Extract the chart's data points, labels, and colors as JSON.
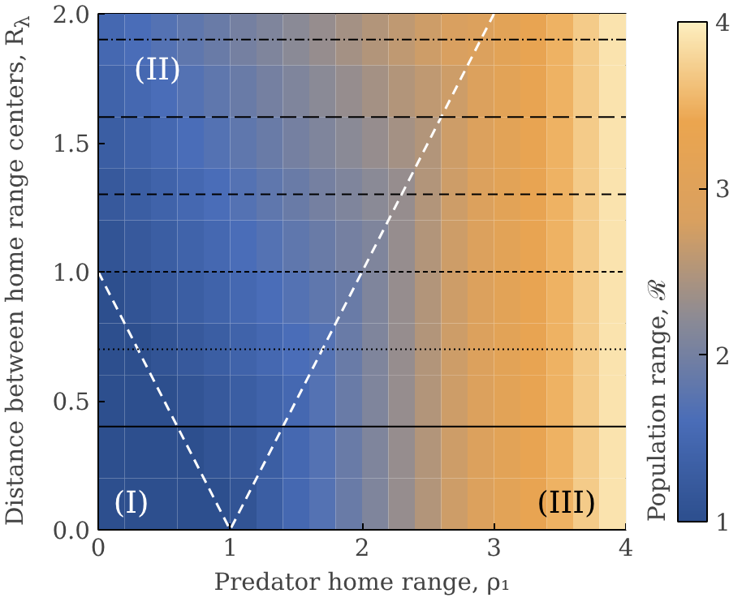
{
  "chart_data": {
    "type": "heatmap",
    "xlabel": "Predator home range, ρ₁",
    "ylabel": "Distance between home range centers, R$_{λ}$",
    "clabel": "Population range, ℛ",
    "x": [
      0.1,
      0.3,
      0.5,
      0.7,
      0.9,
      1.1,
      1.3,
      1.5,
      1.7,
      1.9,
      2.1,
      2.3,
      2.5,
      2.7,
      2.9,
      3.1,
      3.3,
      3.5,
      3.7,
      3.9
    ],
    "y": [
      1.9,
      1.7,
      1.5,
      1.3,
      1.1,
      0.9,
      0.7,
      0.5,
      0.3,
      0.1
    ],
    "cells": [
      [
        1.5,
        1.6,
        1.7,
        1.8,
        1.9,
        2.0,
        2.1,
        2.2,
        2.3,
        2.4,
        2.5,
        2.6,
        2.7,
        2.8,
        2.9,
        3.1,
        3.3,
        3.5,
        3.7,
        3.9
      ],
      [
        1.4,
        1.5,
        1.6,
        1.7,
        1.8,
        1.9,
        2.0,
        2.1,
        2.2,
        2.3,
        2.4,
        2.5,
        2.6,
        2.7,
        2.9,
        3.1,
        3.3,
        3.5,
        3.7,
        3.9
      ],
      [
        1.3,
        1.4,
        1.5,
        1.6,
        1.7,
        1.8,
        1.9,
        2.0,
        2.1,
        2.2,
        2.3,
        2.4,
        2.5,
        2.7,
        2.9,
        3.1,
        3.3,
        3.5,
        3.7,
        3.9
      ],
      [
        1.2,
        1.3,
        1.4,
        1.5,
        1.6,
        1.7,
        1.8,
        1.9,
        2.0,
        2.1,
        2.2,
        2.3,
        2.5,
        2.7,
        2.9,
        3.1,
        3.3,
        3.5,
        3.7,
        3.9
      ],
      [
        1.1,
        1.2,
        1.3,
        1.4,
        1.5,
        1.6,
        1.7,
        1.8,
        1.9,
        2.0,
        2.1,
        2.3,
        2.5,
        2.7,
        2.9,
        3.1,
        3.3,
        3.5,
        3.7,
        3.9
      ],
      [
        1.0,
        1.1,
        1.2,
        1.3,
        1.4,
        1.5,
        1.6,
        1.7,
        1.8,
        1.9,
        2.1,
        2.3,
        2.5,
        2.7,
        2.9,
        3.1,
        3.3,
        3.5,
        3.7,
        3.9
      ],
      [
        1.0,
        1.0,
        1.1,
        1.2,
        1.3,
        1.4,
        1.5,
        1.6,
        1.7,
        1.9,
        2.1,
        2.3,
        2.5,
        2.7,
        2.9,
        3.1,
        3.3,
        3.5,
        3.7,
        3.9
      ],
      [
        1.0,
        1.0,
        1.0,
        1.1,
        1.2,
        1.3,
        1.4,
        1.5,
        1.7,
        1.9,
        2.1,
        2.3,
        2.5,
        2.7,
        2.9,
        3.1,
        3.3,
        3.5,
        3.7,
        3.9
      ],
      [
        1.0,
        1.0,
        1.0,
        1.0,
        1.1,
        1.2,
        1.3,
        1.5,
        1.7,
        1.9,
        2.1,
        2.3,
        2.5,
        2.7,
        2.9,
        3.1,
        3.3,
        3.5,
        3.7,
        3.9
      ],
      [
        1.0,
        1.0,
        1.0,
        1.0,
        1.0,
        1.1,
        1.3,
        1.5,
        1.7,
        1.9,
        2.1,
        2.3,
        2.5,
        2.7,
        2.9,
        3.1,
        3.3,
        3.5,
        3.7,
        3.9
      ]
    ],
    "colors": [
      "#2d4f8e",
      "#4a6db8",
      "#8a8a96",
      "#d9a060",
      "#eba54f",
      "#fdefc0"
    ],
    "clim": [
      1,
      4
    ],
    "cticks": [
      1,
      2,
      3,
      4
    ],
    "xlim": [
      0,
      4
    ],
    "ylim": [
      0,
      2
    ],
    "xticks": [
      0,
      1,
      2,
      3,
      4
    ],
    "yticks": [
      {
        "value": 0,
        "label": "0.0"
      },
      {
        "value": 0.5,
        "label": "0.5"
      },
      {
        "value": 1,
        "label": "1.0"
      },
      {
        "value": 1.5,
        "label": "1.5"
      },
      {
        "value": 2,
        "label": "2.0"
      }
    ],
    "series": [
      {
        "type": "line",
        "color": "#ffffff",
        "line_style": "dashed",
        "x": [
          0,
          1,
          3
        ],
        "values": [
          1,
          0,
          2
        ]
      }
    ],
    "ref_lines": [
      {
        "axis": "y",
        "value": 0.4,
        "color": "#000000",
        "line_style": "solid"
      },
      {
        "axis": "y",
        "value": 0.7,
        "color": "#000000",
        "line_style": "dotted"
      },
      {
        "axis": "y",
        "value": 1.0,
        "color": "#000000",
        "line_style": "shortdash"
      },
      {
        "axis": "y",
        "value": 1.3,
        "color": "#000000",
        "line_style": "dashed"
      },
      {
        "axis": "y",
        "value": 1.6,
        "color": "#000000",
        "line_style": "longdash"
      },
      {
        "axis": "y",
        "value": 1.9,
        "color": "#000000",
        "line_style": "dashdot"
      }
    ],
    "annotations": [
      "(I)",
      "(II)",
      "(III)"
    ]
  }
}
